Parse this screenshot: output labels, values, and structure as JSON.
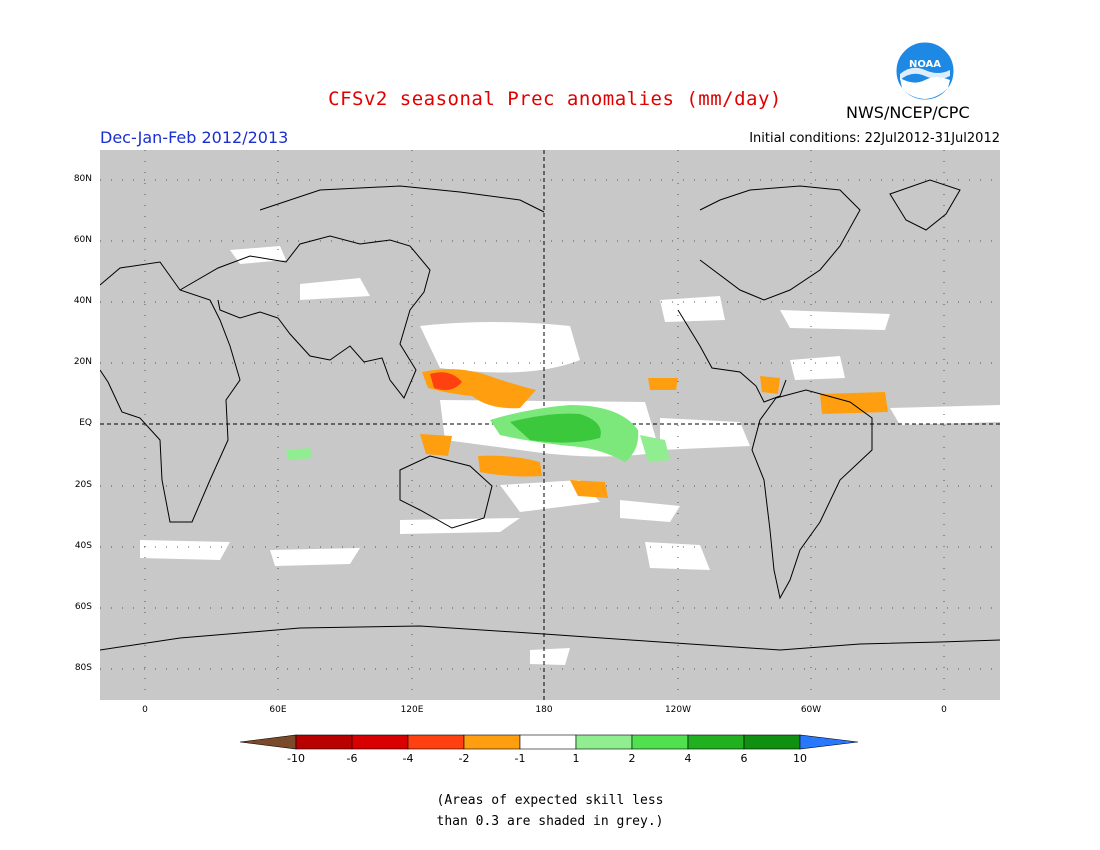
{
  "title": "CFSv2 seasonal Prec anomalies (mm/day)",
  "organization": "NWS/NCEP/CPC",
  "logo_text": "NOAA",
  "season_label": "Dec-Jan-Feb 2012/2013",
  "initial_conditions": "Initial conditions: 22Jul2012-31Jul2012",
  "lat_labels": [
    "80N",
    "60N",
    "40N",
    "20N",
    "EQ",
    "20S",
    "40S",
    "60S",
    "80S"
  ],
  "lon_labels": [
    "0",
    "60E",
    "120E",
    "180",
    "120W",
    "60W",
    "0"
  ],
  "colorbar": {
    "labels": [
      "-10",
      "-6",
      "-4",
      "-2",
      "-1",
      "1",
      "2",
      "4",
      "6",
      "10"
    ],
    "colors": [
      "#7a4a2a",
      "#b80000",
      "#d80000",
      "#ff4010",
      "#ff9f10",
      "#ffffff",
      "#90ee90",
      "#50e050",
      "#20b020",
      "#109010",
      "#2878ff"
    ]
  },
  "map_colors": {
    "no_skill_grey": "#c8c8c8",
    "near_normal_white": "#ffffff",
    "coast": "#000000"
  },
  "note_line1": "(Areas of expected skill less",
  "note_line2": "than 0.3 are shaded in grey.)"
}
